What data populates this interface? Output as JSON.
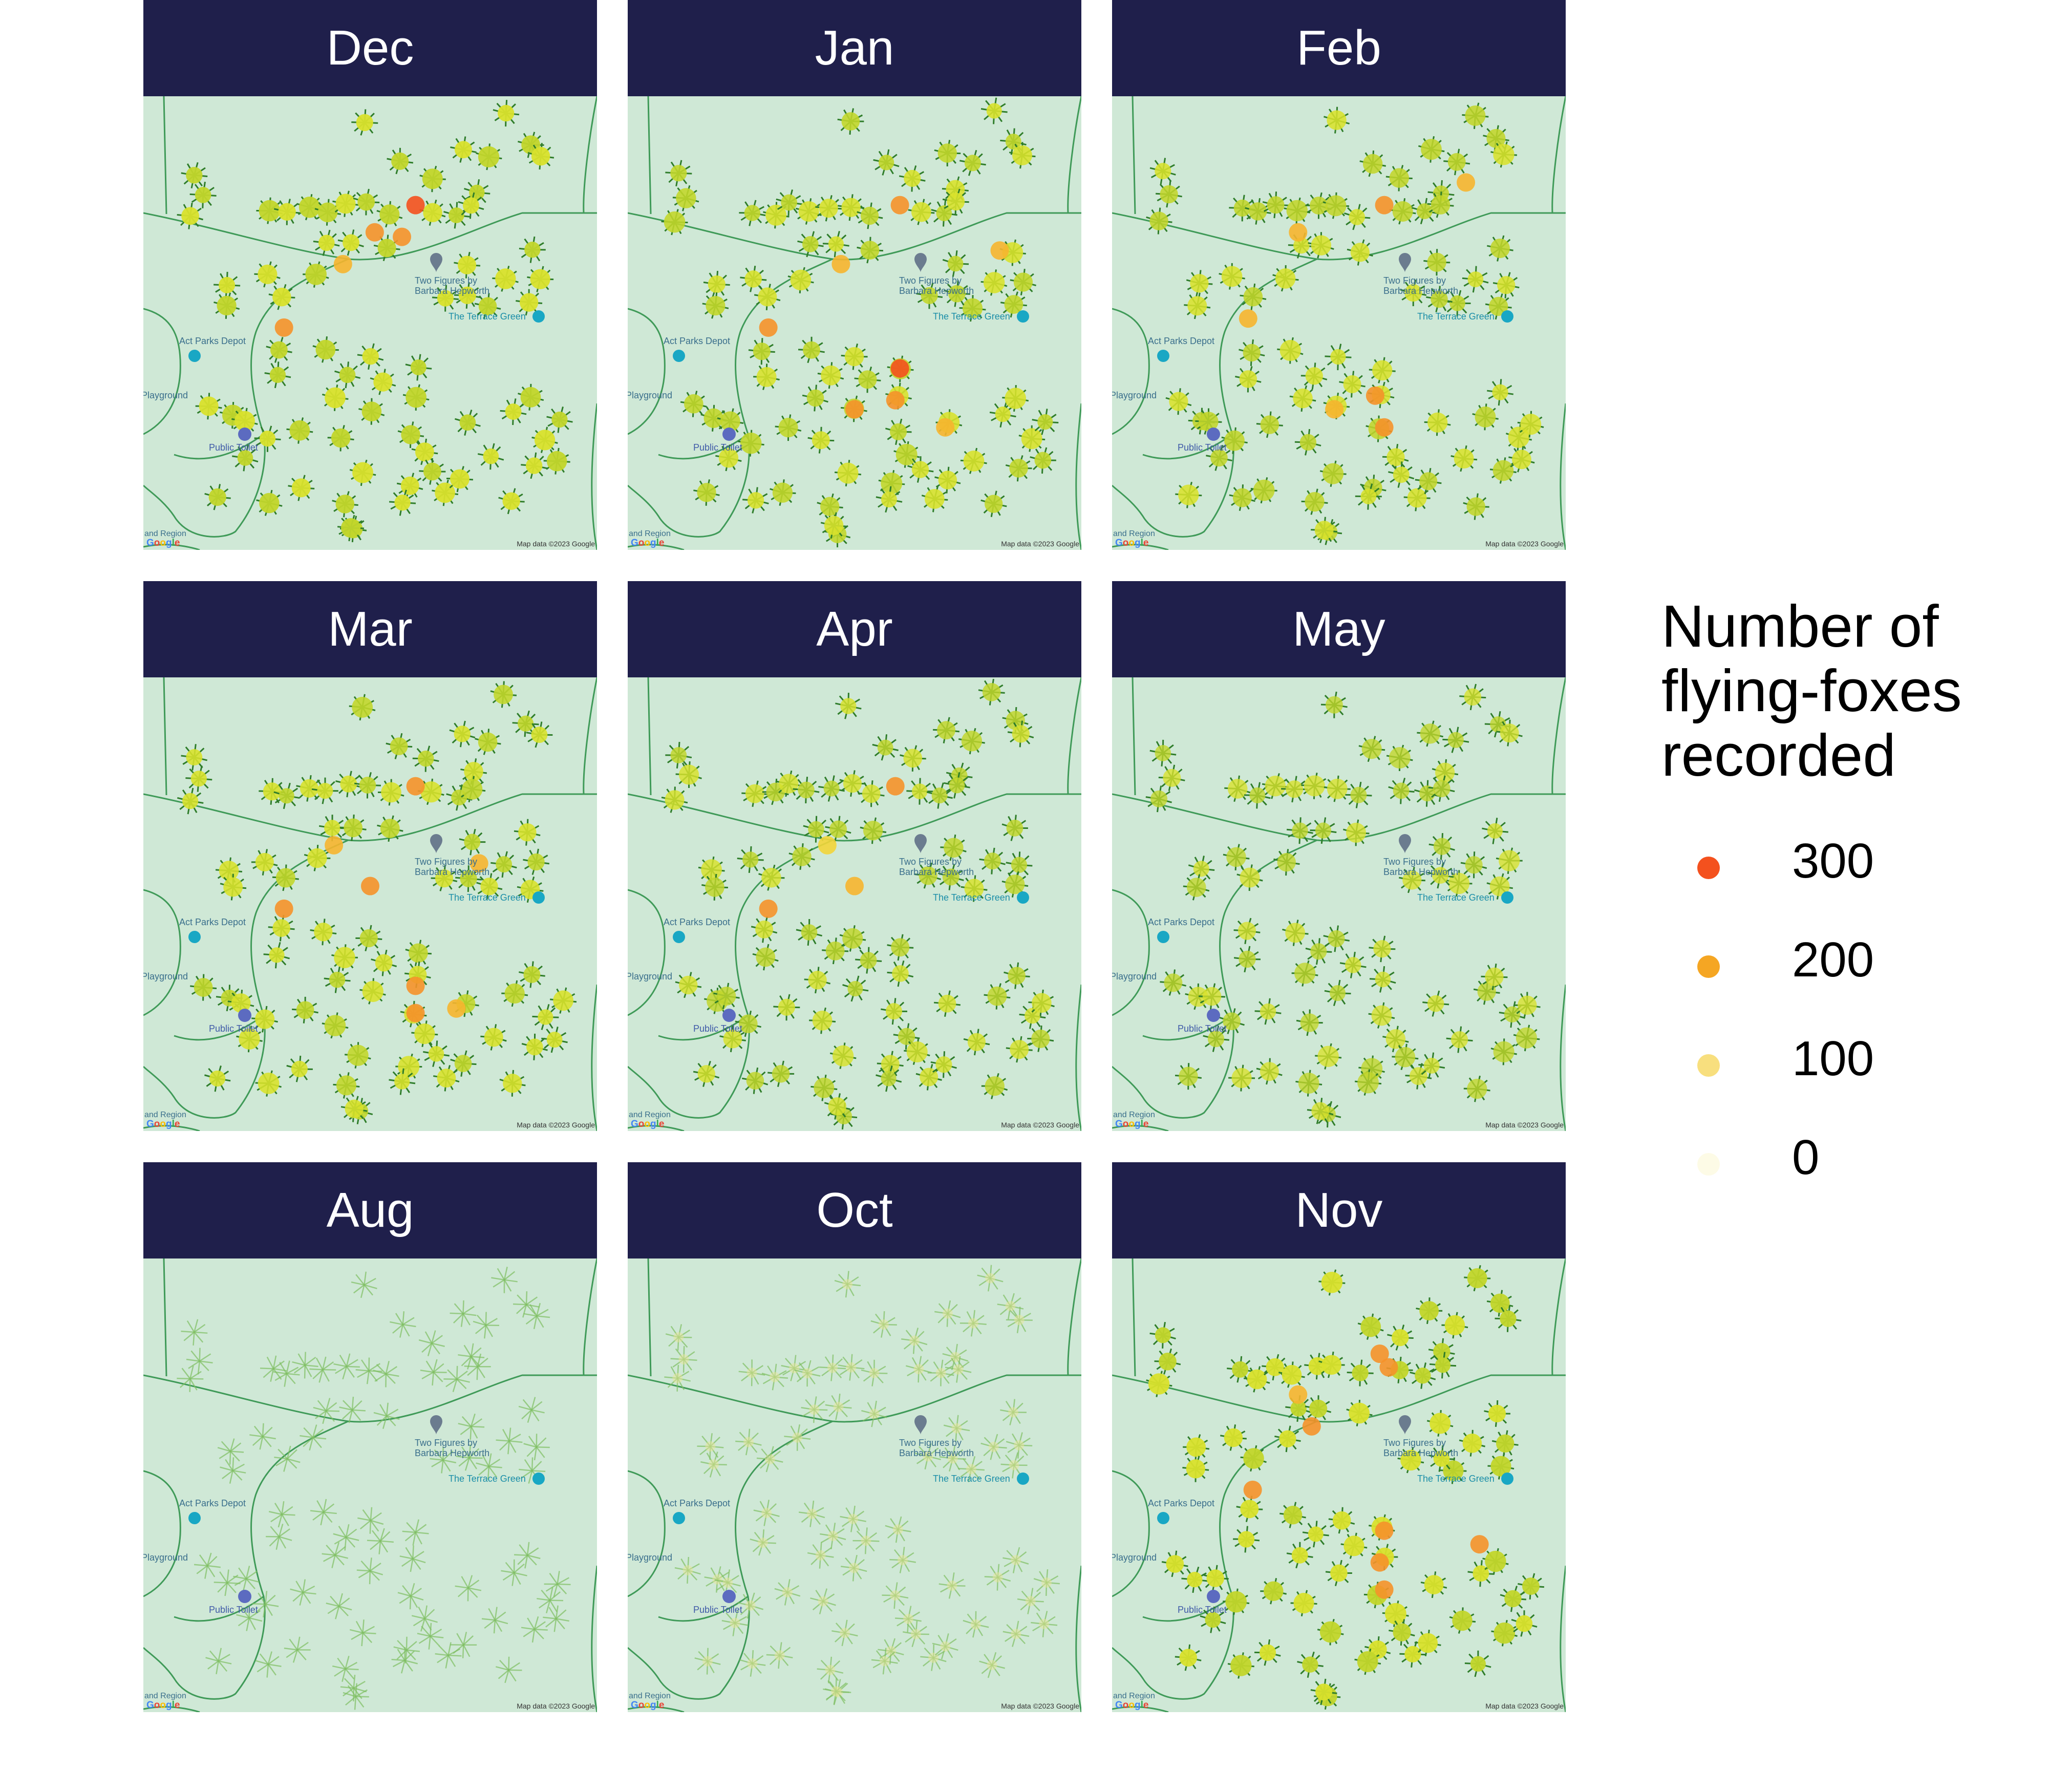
{
  "legend": {
    "title_lines": [
      "Number of",
      "flying-foxes",
      "recorded"
    ],
    "items": [
      {
        "label": "300",
        "value": 300,
        "color": "#f4511e"
      },
      {
        "label": "200",
        "value": 200,
        "color": "#f5a623"
      },
      {
        "label": "100",
        "value": 100,
        "color": "#f8df7e"
      },
      {
        "label": "0",
        "value": 0,
        "color": "#fdfbe6"
      }
    ]
  },
  "map_labels": {
    "two_figures": "Two Figures by",
    "barbara": "Barbara Hepworth",
    "terrace_green": "The Terrace Green",
    "act_parks": "Act Parks Depot",
    "playground": "Playground",
    "public_toilet": "Public Toilet",
    "region": "and Region",
    "copyright": "Map data ©2023 Google",
    "google": "Google"
  },
  "chart_data": {
    "type": "map",
    "panels": [
      {
        "month": "Dec",
        "density": 1.0
      },
      {
        "month": "Jan",
        "density": 0.85
      },
      {
        "month": "Feb",
        "density": 0.8
      },
      {
        "month": "Mar",
        "density": 0.85
      },
      {
        "month": "Apr",
        "density": 0.7
      },
      {
        "month": "May",
        "density": 0.6
      },
      {
        "month": "Aug",
        "density": 0.0
      },
      {
        "month": "Oct",
        "density": 0.08
      },
      {
        "month": "Nov",
        "density": 1.0
      }
    ],
    "hotspots": {
      "Dec": [
        [
          0.6,
          0.24,
          300
        ],
        [
          0.51,
          0.3,
          200
        ],
        [
          0.57,
          0.31,
          200
        ],
        [
          0.44,
          0.37,
          150
        ],
        [
          0.31,
          0.51,
          200
        ]
      ],
      "Jan": [
        [
          0.6,
          0.24,
          250
        ],
        [
          0.6,
          0.6,
          300
        ],
        [
          0.59,
          0.67,
          250
        ],
        [
          0.5,
          0.69,
          250
        ],
        [
          0.31,
          0.51,
          200
        ],
        [
          0.47,
          0.37,
          150
        ],
        [
          0.82,
          0.34,
          150
        ],
        [
          0.7,
          0.73,
          150
        ]
      ],
      "Feb": [
        [
          0.6,
          0.24,
          250
        ],
        [
          0.58,
          0.66,
          250
        ],
        [
          0.6,
          0.73,
          200
        ],
        [
          0.49,
          0.69,
          150
        ],
        [
          0.41,
          0.3,
          150
        ],
        [
          0.78,
          0.19,
          150
        ],
        [
          0.3,
          0.49,
          150
        ]
      ],
      "Mar": [
        [
          0.6,
          0.24,
          250
        ],
        [
          0.6,
          0.68,
          250
        ],
        [
          0.6,
          0.74,
          250
        ],
        [
          0.5,
          0.46,
          200
        ],
        [
          0.31,
          0.51,
          200
        ],
        [
          0.74,
          0.41,
          150
        ],
        [
          0.42,
          0.37,
          150
        ],
        [
          0.69,
          0.73,
          150
        ]
      ],
      "Apr": [
        [
          0.59,
          0.24,
          200
        ],
        [
          0.31,
          0.51,
          200
        ],
        [
          0.5,
          0.46,
          150
        ],
        [
          0.44,
          0.37,
          100
        ]
      ],
      "May": [],
      "Aug": [],
      "Oct": [],
      "Nov": [
        [
          0.59,
          0.21,
          200
        ],
        [
          0.61,
          0.24,
          250
        ],
        [
          0.6,
          0.6,
          250
        ],
        [
          0.59,
          0.67,
          200
        ],
        [
          0.6,
          0.73,
          200
        ],
        [
          0.44,
          0.37,
          200
        ],
        [
          0.31,
          0.51,
          200
        ],
        [
          0.81,
          0.63,
          200
        ],
        [
          0.41,
          0.3,
          150
        ]
      ]
    }
  }
}
